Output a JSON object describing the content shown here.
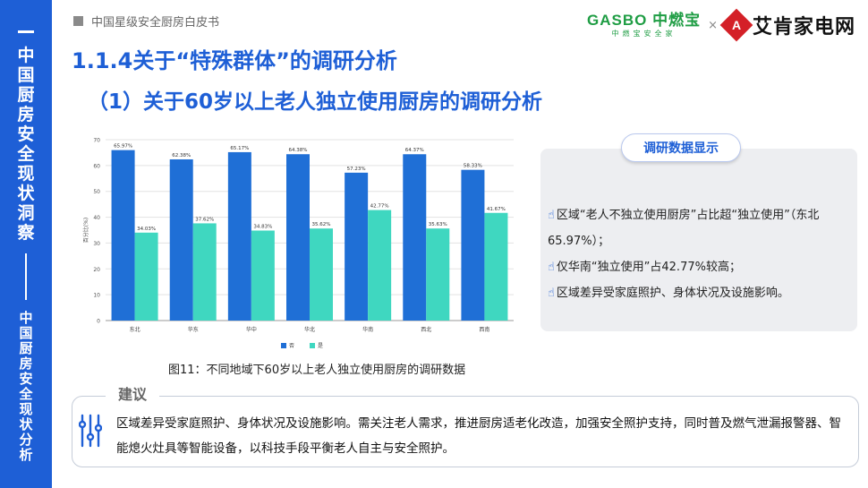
{
  "sidebar": {
    "main_title": "中国厨房安全现状洞察",
    "sub_title": "中国厨房安全现状分析"
  },
  "header": {
    "breadcrumb": "中国星级安全厨房白皮书",
    "logo_gasbo_en": "GASBO 中燃宝",
    "logo_gasbo_cn": "中燃宝安全家",
    "logo_separator": "×",
    "logo_ak_name": "艾肯家电网"
  },
  "titles": {
    "section": "1.1.4关于“特殊群体”的调研分析",
    "subsection": "（1）关于60岁以上老人独立使用厨房的调研分析"
  },
  "chart_data": {
    "type": "bar",
    "categories": [
      "东北",
      "华东",
      "华中",
      "华北",
      "华南",
      "西北",
      "西南"
    ],
    "series": [
      {
        "name": "否",
        "color": "#1f6fd6",
        "values": [
          65.97,
          62.38,
          65.17,
          64.38,
          57.23,
          64.37,
          58.33
        ],
        "labels": [
          "65.97%",
          "62.38%",
          "65.17%",
          "64.38%",
          "57.23%",
          "64.37%",
          "58.33%"
        ]
      },
      {
        "name": "是",
        "color": "#3fd7c0",
        "values": [
          34.03,
          37.62,
          34.83,
          35.62,
          42.77,
          35.63,
          41.67
        ],
        "labels": [
          "34.03%",
          "37.62%",
          "34.83%",
          "35.62%",
          "42.77%",
          "35.63%",
          "41.67%"
        ]
      }
    ],
    "yticks": [
      0,
      10,
      20,
      30,
      40,
      50,
      60,
      70
    ],
    "ylim": [
      0,
      70
    ],
    "ylabel": "百分比(%)",
    "legend_position": "bottom",
    "grid": true
  },
  "caption": "图11：不同地域下60岁以上老人独立使用厨房的调研数据",
  "findings": {
    "tab_label": "调研数据显示",
    "items": [
      "区域“老人不独立使用厨房”占比超“独立使用”（东北65.97%）；",
      "仅华南“独立使用”占42.77%较高；",
      "区域差异受家庭照护、身体状况及设施影响。"
    ]
  },
  "advice": {
    "title": "建议",
    "text": "区域差异受家庭照护、身体状况及设施影响。需关注老人需求，推进厨房适老化改造，加强安全照护支持，同时普及燃气泄漏报警器、智能熄火灶具等智能设备，以科技手段平衡老人自主与安全照护。"
  }
}
